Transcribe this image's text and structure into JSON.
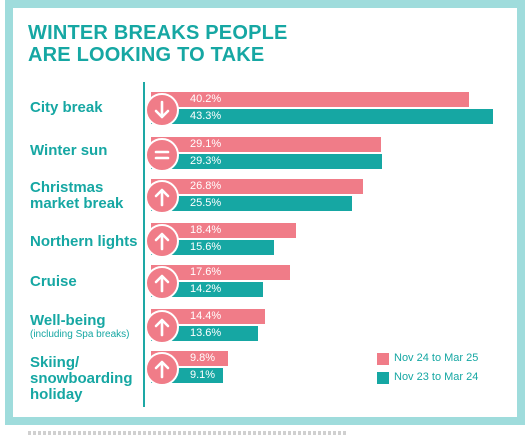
{
  "title": {
    "line1": "WINTER BREAKS PEOPLE",
    "line2": "ARE LOOKING TO TAKE"
  },
  "colors": {
    "series0": "#f07c88",
    "series1": "#16a7a3",
    "title": "#16a7a3"
  },
  "chart_data": {
    "type": "bar",
    "orientation": "horizontal",
    "categories": [
      "City break",
      "Winter sun",
      "Christmas market break",
      "Northern lights",
      "Cruise",
      "Well-being (including Spa breaks)",
      "Skiing/ snowboarding holiday"
    ],
    "category_labels": [
      {
        "main": "City break",
        "sub": ""
      },
      {
        "main": "Winter sun",
        "sub": ""
      },
      {
        "main": "Christmas market break",
        "sub": ""
      },
      {
        "main": "Northern lights",
        "sub": ""
      },
      {
        "main": "Cruise",
        "sub": ""
      },
      {
        "main": "Well-being",
        "sub": "(including Spa breaks)"
      },
      {
        "main": "Skiing/ snowboarding holiday",
        "sub": ""
      }
    ],
    "trend_icons": [
      "arrow-down-icon",
      "equals-icon",
      "arrow-up-icon",
      "arrow-up-icon",
      "arrow-up-icon",
      "arrow-up-icon",
      "arrow-up-icon"
    ],
    "series": [
      {
        "name": "Nov 24 to Mar 25",
        "values": [
          40.2,
          29.1,
          26.8,
          18.4,
          17.6,
          14.4,
          9.8
        ],
        "labels": [
          "40.2%",
          "29.1%",
          "26.8%",
          "18.4%",
          "17.6%",
          "14.4%",
          "9.8%"
        ]
      },
      {
        "name": "Nov 23 to Mar 24",
        "values": [
          43.3,
          29.3,
          25.5,
          15.6,
          14.2,
          13.6,
          9.1
        ],
        "labels": [
          "43.3%",
          "29.3%",
          "25.5%",
          "15.6%",
          "14.2%",
          "13.6%",
          "9.1%"
        ]
      }
    ],
    "xlim": [
      0,
      43.3
    ],
    "legend": "bottom-right"
  }
}
